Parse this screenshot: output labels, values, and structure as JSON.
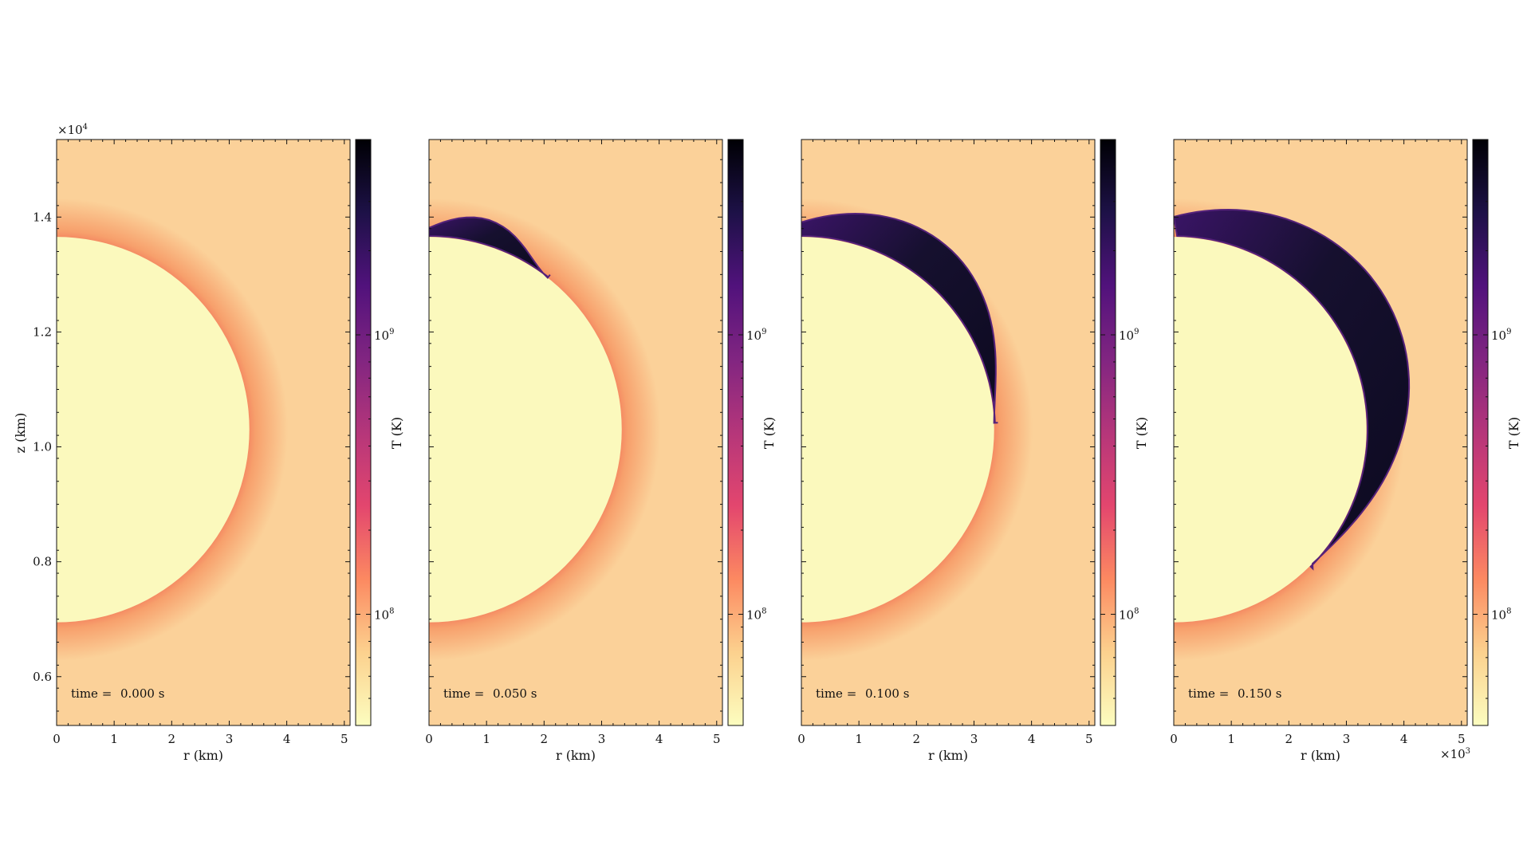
{
  "chart_data": {
    "type": "heatmap",
    "description_units": {
      "x_multiplier": "×10³",
      "y_multiplier": "×10⁴"
    },
    "xlabel": "r  (km)",
    "ylabel": "z  (km)",
    "colorbar_label": "T  (K)",
    "colorbar_scale": "log",
    "colorbar_range": [
      40000000.0,
      5000000000.0
    ],
    "colorbar_ticks": [
      {
        "value": 100000000.0,
        "base": "10",
        "exp": "8"
      },
      {
        "value": 1000000000.0,
        "base": "10",
        "exp": "9"
      }
    ],
    "x_range": [
      0,
      5.1
    ],
    "y_range": [
      0.515,
      1.535
    ],
    "x_ticks": [
      "0",
      "1",
      "2",
      "3",
      "4",
      "5"
    ],
    "x_tick_values": [
      0,
      1,
      2,
      3,
      4,
      5
    ],
    "y_ticks": [
      "0.6",
      "0.8",
      "1.0",
      "1.2",
      "1.4"
    ],
    "y_tick_values": [
      0.6,
      0.8,
      1.0,
      1.2,
      1.4
    ],
    "x_exponent_label": "×10",
    "x_exponent_sup": "3",
    "y_exponent_label": "×10",
    "y_exponent_sup": "4",
    "colors": {
      "background": "#fbd199",
      "star": "#fbf9bd",
      "shell_inner": "#f27459",
      "shell_outer": "#fbd199",
      "burn_dark": "#16102f",
      "burn_edge": "#55227a",
      "colormap": [
        "#fcfdbf",
        "#fcd18e",
        "#fc8961",
        "#e3466e",
        "#b5367a",
        "#812581",
        "#51127c",
        "#1d1147",
        "#000004"
      ]
    },
    "panels": [
      {
        "time_label": "time =",
        "time_value": "0.000 s",
        "front_angle_deg": 0
      },
      {
        "time_label": "time =",
        "time_value": "0.050 s",
        "front_angle_deg": 38
      },
      {
        "time_label": "time =",
        "time_value": "0.100 s",
        "front_angle_deg": 88
      },
      {
        "time_label": "time =",
        "time_value": "0.150 s",
        "front_angle_deg": 135
      }
    ],
    "star_center": {
      "r": 0,
      "z": 1.03
    },
    "star_radius": 3.35
  }
}
